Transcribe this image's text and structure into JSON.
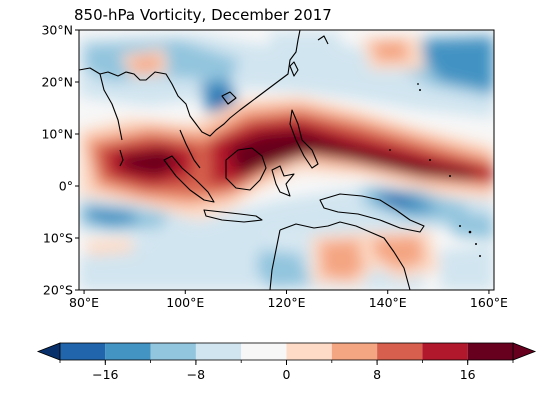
{
  "title": "850-hPa Vorticity, December 2017",
  "map": {
    "lat_ticks": [
      "30°N",
      "20°N",
      "10°N",
      "0°",
      "10°S",
      "20°S"
    ],
    "lon_ticks": [
      "80°E",
      "100°E",
      "120°E",
      "140°E",
      "160°E"
    ],
    "extent": {
      "lon": [
        79,
        161
      ],
      "lat": [
        -20,
        30
      ]
    }
  },
  "colorbar": {
    "tick_labels": [
      "−16",
      "−8",
      "0",
      "8",
      "16"
    ],
    "tick_values": [
      -16,
      -8,
      0,
      8,
      16
    ],
    "levels": [
      -20,
      -16,
      -12,
      -8,
      -4,
      0,
      4,
      8,
      12,
      16,
      20
    ],
    "extend": "both",
    "colors": [
      "#08306b",
      "#2166ac",
      "#4393c3",
      "#92c5de",
      "#d1e5f0",
      "#f7f7f7",
      "#fddbc7",
      "#f4a582",
      "#d6604d",
      "#b2182b",
      "#67001f"
    ]
  }
}
